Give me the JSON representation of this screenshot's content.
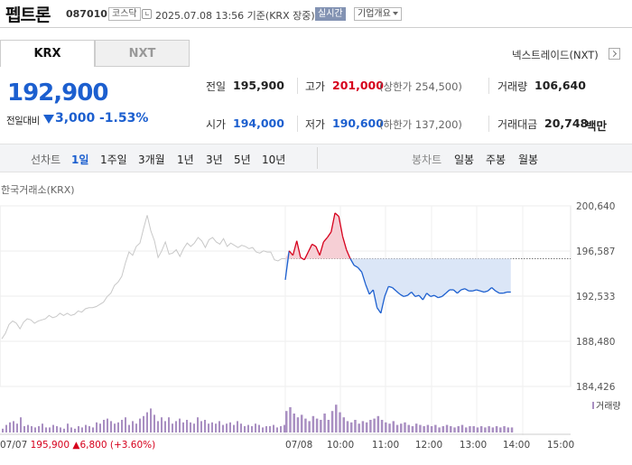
{
  "header": {
    "stock_name": "펩트론",
    "stock_code": "087010",
    "market_badge": "코스닥",
    "datetime_text": "2025.07.08 13:56 기준(KRX 장중)",
    "realtime_badge": "실시간",
    "company_overview_label": "기업개요"
  },
  "exchange_tabs": {
    "krx": "KRX",
    "nxt": "NXT",
    "nextrade_label": "넥스트레이드(NXT)"
  },
  "quote": {
    "current_price": "192,900",
    "change_label": "전일대비",
    "change_value": "3,000",
    "change_rate": "-1.53%",
    "direction": "down"
  },
  "info": {
    "prev_close_label": "전일",
    "prev_close": "195,900",
    "high_label": "고가",
    "high": "201,000",
    "upper_limit": "(상한가 254,500)",
    "volume_label": "거래량",
    "volume": "106,640",
    "open_label": "시가",
    "open": "194,000",
    "low_label": "저가",
    "low": "190,600",
    "lower_limit": "(하한가 137,200)",
    "trade_value_label": "거래대금",
    "trade_value": "20,748",
    "trade_value_unit": "백만"
  },
  "period_bar": {
    "line_chart_label": "선차트",
    "periods": [
      "1일",
      "1주일",
      "3개월",
      "1년",
      "3년",
      "5년",
      "10년"
    ],
    "selected_period": "1일",
    "candle_chart_label": "봉차트",
    "candle_periods": [
      "일봉",
      "주봉",
      "월봉"
    ]
  },
  "chart_data": {
    "type": "line",
    "exchange_label": "한국거래소(KRX)",
    "y_ticks": [
      "200,640",
      "196,587",
      "192,533",
      "188,480",
      "184,426"
    ],
    "ylim": [
      184426,
      200640
    ],
    "reference_price": 195900,
    "x_ticks": [
      "07/07",
      "07/08",
      "10:00",
      "11:00",
      "12:00",
      "13:00",
      "14:00",
      "15:00"
    ],
    "volume_legend": "거래량",
    "prev_day_series": {
      "name": "07/07",
      "time": [
        0,
        5,
        10,
        15,
        20,
        25,
        30,
        35,
        40,
        45,
        50,
        55,
        60,
        65,
        70,
        75,
        80,
        85,
        90,
        95,
        100,
        105,
        110,
        115,
        120,
        125,
        130,
        135,
        140,
        145,
        150,
        155,
        160,
        165,
        170,
        175,
        180,
        185,
        190,
        195,
        200,
        205,
        210,
        215,
        220,
        225,
        230,
        235,
        240,
        245,
        250,
        255,
        260,
        265,
        270,
        275,
        280,
        285,
        290,
        295,
        300,
        305,
        310,
        315,
        320,
        325,
        330,
        335,
        340,
        345,
        350,
        355,
        360,
        365,
        370,
        375,
        380,
        385,
        390
      ],
      "values": [
        188700,
        189200,
        190000,
        190300,
        190100,
        189600,
        190200,
        190500,
        190400,
        190100,
        190300,
        190400,
        190500,
        190800,
        190600,
        190700,
        191000,
        190800,
        191000,
        190800,
        190900,
        191200,
        191100,
        191400,
        191500,
        191500,
        191600,
        191800,
        192000,
        192500,
        192800,
        193500,
        193800,
        194300,
        195500,
        196500,
        196200,
        197000,
        197300,
        198600,
        199800,
        198400,
        197500,
        196000,
        196600,
        197400,
        196300,
        196400,
        196700,
        196100,
        196800,
        197300,
        197000,
        197300,
        197800,
        197500,
        196900,
        197600,
        197800,
        197400,
        197200,
        197700,
        197000,
        197300,
        197100,
        196900,
        197100,
        197000,
        196800,
        196900,
        196500,
        196400,
        196600,
        196500,
        196500,
        195800,
        195700,
        195900,
        195900
      ]
    },
    "today_series": {
      "name": "07/08",
      "time": [
        "09:00",
        "09:05",
        "09:10",
        "09:15",
        "09:20",
        "09:25",
        "09:30",
        "09:35",
        "09:40",
        "09:45",
        "09:50",
        "09:55",
        "10:00",
        "10:05",
        "10:10",
        "10:15",
        "10:20",
        "10:25",
        "10:30",
        "10:35",
        "10:40",
        "10:45",
        "10:50",
        "10:55",
        "11:00",
        "11:05",
        "11:10",
        "11:15",
        "11:20",
        "11:25",
        "11:30",
        "11:35",
        "11:40",
        "11:45",
        "11:50",
        "11:55",
        "12:00",
        "12:05",
        "12:10",
        "12:15",
        "12:20",
        "12:25",
        "12:30",
        "12:35",
        "12:40",
        "12:45",
        "12:50",
        "12:55",
        "13:00",
        "13:05",
        "13:10",
        "13:15",
        "13:20",
        "13:25",
        "13:30",
        "13:35",
        "13:40",
        "13:45",
        "13:50",
        "13:55"
      ],
      "values": [
        194000,
        196600,
        196200,
        197500,
        196000,
        195800,
        196500,
        197200,
        197000,
        196200,
        197400,
        197800,
        198300,
        200000,
        199700,
        197900,
        196700,
        195900,
        195300,
        195100,
        194700,
        193600,
        192700,
        193100,
        191500,
        191000,
        192500,
        193400,
        193300,
        193000,
        192700,
        192500,
        192600,
        192900,
        192500,
        192600,
        192200,
        192800,
        192500,
        192600,
        192400,
        192500,
        192800,
        193100,
        193100,
        192800,
        193100,
        193200,
        193000,
        193000,
        193100,
        193000,
        192900,
        193000,
        193300,
        193000,
        192800,
        192800,
        192900,
        192900
      ]
    },
    "volume_prev": [
      3,
      6,
      8,
      9,
      7,
      12,
      5,
      6,
      5,
      4,
      5,
      7,
      4,
      4,
      6,
      5,
      4,
      3,
      7,
      4,
      3,
      5,
      4,
      6,
      5,
      4,
      8,
      7,
      10,
      11,
      9,
      7,
      8,
      10,
      12,
      6,
      9,
      7,
      11,
      13,
      16,
      19,
      14,
      9,
      12,
      9,
      12,
      7,
      9,
      11,
      8,
      10,
      8,
      7,
      12,
      9,
      10,
      7,
      8,
      7,
      9,
      6,
      7,
      8,
      6,
      9,
      7,
      5,
      6,
      5,
      7,
      6,
      4,
      5,
      5,
      6,
      4,
      5,
      6
    ],
    "volume_today": [
      17,
      20,
      15,
      12,
      14,
      11,
      9,
      13,
      11,
      10,
      15,
      10,
      17,
      22,
      16,
      12,
      9,
      8,
      10,
      7,
      9,
      8,
      10,
      11,
      13,
      10,
      8,
      7,
      9,
      6,
      7,
      8,
      6,
      5,
      7,
      6,
      5,
      6,
      5,
      6,
      4,
      5,
      6,
      5,
      4,
      5,
      6,
      4,
      5,
      5,
      4,
      5,
      4,
      5,
      4,
      5,
      4,
      5,
      4,
      4
    ]
  },
  "footer": {
    "prev_close_date": "07/07",
    "prev_close_value": "195,900",
    "prev_close_change": "6,800",
    "prev_close_rate": "(+3.60%)"
  },
  "colors": {
    "up": "#d6001c",
    "down": "#1c5fcf",
    "prev_line": "#c8c8c8",
    "down_fill": "#dbe6f7",
    "up_fill": "#f6cfd5",
    "volume": "#a98fc2",
    "realtime_badge": "#8393b3"
  }
}
